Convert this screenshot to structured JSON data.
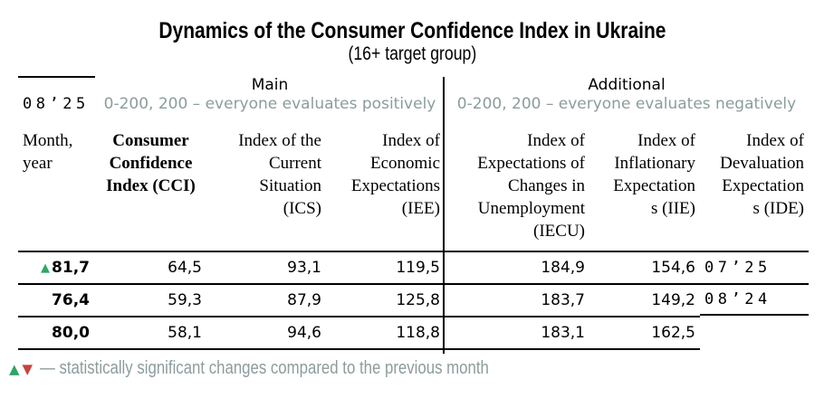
{
  "title": "Dynamics of the Consumer Confidence Index in Ukraine",
  "subtitle": "(16+ target group)",
  "groups": {
    "main": {
      "label": "Main",
      "scale_note": "0-200, 200 – everyone evaluates positively"
    },
    "additional": {
      "label": "Additional",
      "scale_note": "0-200, 200 – everyone evaluates negatively"
    }
  },
  "columns": {
    "month": "Month,\nyear",
    "cci": "Consumer\nConfidence\nIndex (CCI)",
    "ics": "Index of the\nCurrent\nSituation\n(ICS)",
    "iee": "Index of\nEconomic\nExpectations\n(IEE)",
    "iecu": "Index of\nExpectations of\nChanges in\nUnemployment\n(IECU)",
    "iie": "Index of\nInflationary\nExpectation\ns (IIE)",
    "ide": "Index of\nDevaluation\nExpectation\ns (IDE)"
  },
  "rows": [
    {
      "month": "08’25",
      "marker": "▲",
      "cci": "81,7",
      "ics": "64,5",
      "iee": "93,1",
      "iecu": "119,5",
      "iie": "184,9",
      "ide": "154,6"
    },
    {
      "month": "07’25",
      "marker": "",
      "cci": "76,4",
      "ics": "59,3",
      "iee": "87,9",
      "iecu": "125,8",
      "iie": "183,7",
      "ide": "149,2"
    },
    {
      "month": "08’24",
      "marker": "",
      "cci": "80,0",
      "ics": "58,1",
      "iee": "94,6",
      "iecu": "118,8",
      "iie": "183,1",
      "ide": "162,5"
    }
  ],
  "legend": {
    "up_icon": "▲",
    "down_icon": "▼",
    "text": "— statistically significant changes compared to the previous month"
  },
  "colors": {
    "up_green": "#2EA566",
    "down_red": "#C5433E",
    "muted_gray": "#8C9C9C",
    "rule_black": "#000000"
  }
}
